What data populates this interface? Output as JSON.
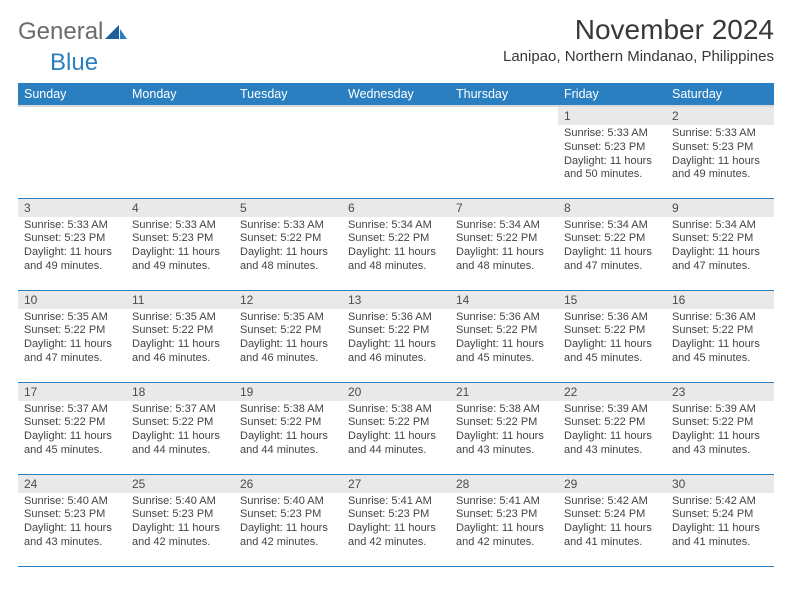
{
  "logo": {
    "word1": "General",
    "word2": "Blue"
  },
  "title": "November 2024",
  "location": "Lanipao, Northern Mindanao, Philippines",
  "weekdays": [
    "Sunday",
    "Monday",
    "Tuesday",
    "Wednesday",
    "Thursday",
    "Friday",
    "Saturday"
  ],
  "colors": {
    "header_bg": "#2a7fc0",
    "header_text": "#ffffff",
    "daynum_bg": "#e9e9e9",
    "border": "#2a7fc0",
    "body_text": "#444444"
  },
  "typography": {
    "title_fontsize": 28,
    "location_fontsize": 15,
    "weekday_fontsize": 12.5,
    "daynum_fontsize": 12,
    "body_fontsize": 11
  },
  "weeks": [
    [
      null,
      null,
      null,
      null,
      null,
      {
        "n": "1",
        "sunrise": "Sunrise: 5:33 AM",
        "sunset": "Sunset: 5:23 PM",
        "day1": "Daylight: 11 hours",
        "day2": "and 50 minutes."
      },
      {
        "n": "2",
        "sunrise": "Sunrise: 5:33 AM",
        "sunset": "Sunset: 5:23 PM",
        "day1": "Daylight: 11 hours",
        "day2": "and 49 minutes."
      }
    ],
    [
      {
        "n": "3",
        "sunrise": "Sunrise: 5:33 AM",
        "sunset": "Sunset: 5:23 PM",
        "day1": "Daylight: 11 hours",
        "day2": "and 49 minutes."
      },
      {
        "n": "4",
        "sunrise": "Sunrise: 5:33 AM",
        "sunset": "Sunset: 5:23 PM",
        "day1": "Daylight: 11 hours",
        "day2": "and 49 minutes."
      },
      {
        "n": "5",
        "sunrise": "Sunrise: 5:33 AM",
        "sunset": "Sunset: 5:22 PM",
        "day1": "Daylight: 11 hours",
        "day2": "and 48 minutes."
      },
      {
        "n": "6",
        "sunrise": "Sunrise: 5:34 AM",
        "sunset": "Sunset: 5:22 PM",
        "day1": "Daylight: 11 hours",
        "day2": "and 48 minutes."
      },
      {
        "n": "7",
        "sunrise": "Sunrise: 5:34 AM",
        "sunset": "Sunset: 5:22 PM",
        "day1": "Daylight: 11 hours",
        "day2": "and 48 minutes."
      },
      {
        "n": "8",
        "sunrise": "Sunrise: 5:34 AM",
        "sunset": "Sunset: 5:22 PM",
        "day1": "Daylight: 11 hours",
        "day2": "and 47 minutes."
      },
      {
        "n": "9",
        "sunrise": "Sunrise: 5:34 AM",
        "sunset": "Sunset: 5:22 PM",
        "day1": "Daylight: 11 hours",
        "day2": "and 47 minutes."
      }
    ],
    [
      {
        "n": "10",
        "sunrise": "Sunrise: 5:35 AM",
        "sunset": "Sunset: 5:22 PM",
        "day1": "Daylight: 11 hours",
        "day2": "and 47 minutes."
      },
      {
        "n": "11",
        "sunrise": "Sunrise: 5:35 AM",
        "sunset": "Sunset: 5:22 PM",
        "day1": "Daylight: 11 hours",
        "day2": "and 46 minutes."
      },
      {
        "n": "12",
        "sunrise": "Sunrise: 5:35 AM",
        "sunset": "Sunset: 5:22 PM",
        "day1": "Daylight: 11 hours",
        "day2": "and 46 minutes."
      },
      {
        "n": "13",
        "sunrise": "Sunrise: 5:36 AM",
        "sunset": "Sunset: 5:22 PM",
        "day1": "Daylight: 11 hours",
        "day2": "and 46 minutes."
      },
      {
        "n": "14",
        "sunrise": "Sunrise: 5:36 AM",
        "sunset": "Sunset: 5:22 PM",
        "day1": "Daylight: 11 hours",
        "day2": "and 45 minutes."
      },
      {
        "n": "15",
        "sunrise": "Sunrise: 5:36 AM",
        "sunset": "Sunset: 5:22 PM",
        "day1": "Daylight: 11 hours",
        "day2": "and 45 minutes."
      },
      {
        "n": "16",
        "sunrise": "Sunrise: 5:36 AM",
        "sunset": "Sunset: 5:22 PM",
        "day1": "Daylight: 11 hours",
        "day2": "and 45 minutes."
      }
    ],
    [
      {
        "n": "17",
        "sunrise": "Sunrise: 5:37 AM",
        "sunset": "Sunset: 5:22 PM",
        "day1": "Daylight: 11 hours",
        "day2": "and 45 minutes."
      },
      {
        "n": "18",
        "sunrise": "Sunrise: 5:37 AM",
        "sunset": "Sunset: 5:22 PM",
        "day1": "Daylight: 11 hours",
        "day2": "and 44 minutes."
      },
      {
        "n": "19",
        "sunrise": "Sunrise: 5:38 AM",
        "sunset": "Sunset: 5:22 PM",
        "day1": "Daylight: 11 hours",
        "day2": "and 44 minutes."
      },
      {
        "n": "20",
        "sunrise": "Sunrise: 5:38 AM",
        "sunset": "Sunset: 5:22 PM",
        "day1": "Daylight: 11 hours",
        "day2": "and 44 minutes."
      },
      {
        "n": "21",
        "sunrise": "Sunrise: 5:38 AM",
        "sunset": "Sunset: 5:22 PM",
        "day1": "Daylight: 11 hours",
        "day2": "and 43 minutes."
      },
      {
        "n": "22",
        "sunrise": "Sunrise: 5:39 AM",
        "sunset": "Sunset: 5:22 PM",
        "day1": "Daylight: 11 hours",
        "day2": "and 43 minutes."
      },
      {
        "n": "23",
        "sunrise": "Sunrise: 5:39 AM",
        "sunset": "Sunset: 5:22 PM",
        "day1": "Daylight: 11 hours",
        "day2": "and 43 minutes."
      }
    ],
    [
      {
        "n": "24",
        "sunrise": "Sunrise: 5:40 AM",
        "sunset": "Sunset: 5:23 PM",
        "day1": "Daylight: 11 hours",
        "day2": "and 43 minutes."
      },
      {
        "n": "25",
        "sunrise": "Sunrise: 5:40 AM",
        "sunset": "Sunset: 5:23 PM",
        "day1": "Daylight: 11 hours",
        "day2": "and 42 minutes."
      },
      {
        "n": "26",
        "sunrise": "Sunrise: 5:40 AM",
        "sunset": "Sunset: 5:23 PM",
        "day1": "Daylight: 11 hours",
        "day2": "and 42 minutes."
      },
      {
        "n": "27",
        "sunrise": "Sunrise: 5:41 AM",
        "sunset": "Sunset: 5:23 PM",
        "day1": "Daylight: 11 hours",
        "day2": "and 42 minutes."
      },
      {
        "n": "28",
        "sunrise": "Sunrise: 5:41 AM",
        "sunset": "Sunset: 5:23 PM",
        "day1": "Daylight: 11 hours",
        "day2": "and 42 minutes."
      },
      {
        "n": "29",
        "sunrise": "Sunrise: 5:42 AM",
        "sunset": "Sunset: 5:24 PM",
        "day1": "Daylight: 11 hours",
        "day2": "and 41 minutes."
      },
      {
        "n": "30",
        "sunrise": "Sunrise: 5:42 AM",
        "sunset": "Sunset: 5:24 PM",
        "day1": "Daylight: 11 hours",
        "day2": "and 41 minutes."
      }
    ]
  ]
}
